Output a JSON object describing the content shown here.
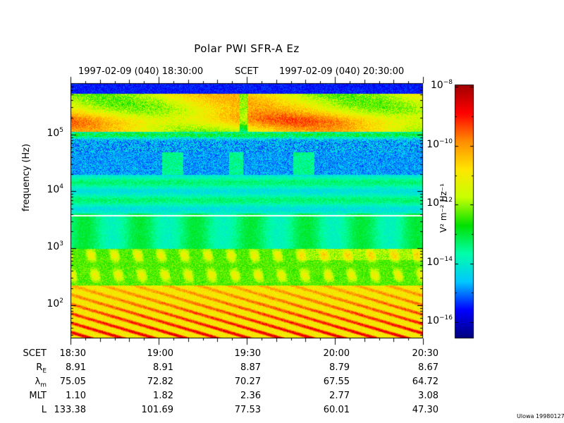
{
  "title": "Polar PWI SFR-A Ez",
  "header": {
    "start_time": "1997-02-09 (040)  18:30:00",
    "timescale": "SCET",
    "end_time": "1997-02-09 (040)  20:30:00"
  },
  "footer_label": "Ulowa 19980127",
  "colorbar": {
    "label": "V² m⁻² Hz⁻¹",
    "tick_base": "10",
    "ticks": [
      {
        "exp": "−8",
        "value": 1e-08
      },
      {
        "exp": "−10",
        "value": 1e-10
      },
      {
        "exp": "−12",
        "value": 1e-12
      },
      {
        "exp": "−14",
        "value": 1e-14
      },
      {
        "exp": "−16",
        "value": 1e-16
      }
    ],
    "scale": "log",
    "range": [
      3e-17,
      1.2e-08
    ],
    "colors": [
      "#00007f",
      "#0000ff",
      "#00c8ff",
      "#00ffaa",
      "#00e100",
      "#c8ff00",
      "#ffe600",
      "#ff8c00",
      "#ff0000",
      "#a00000"
    ]
  },
  "ephemeris": {
    "labels": [
      "SCET",
      "R",
      "λ",
      "MLT",
      "L"
    ],
    "label_subs": [
      "",
      "E",
      "m",
      "",
      ""
    ],
    "columns": [
      {
        "scet": "18:30",
        "re": "8.91",
        "lam": "75.05",
        "mlt": "1.10",
        "l": "133.38"
      },
      {
        "scet": "19:00",
        "re": "8.91",
        "lam": "72.82",
        "mlt": "1.82",
        "l": "101.69"
      },
      {
        "scet": "19:30",
        "re": "8.87",
        "lam": "70.27",
        "mlt": "2.36",
        "l": "77.53"
      },
      {
        "scet": "20:00",
        "re": "8.79",
        "lam": "67.55",
        "mlt": "2.77",
        "l": "60.01"
      },
      {
        "scet": "20:30",
        "re": "8.67",
        "lam": "64.72",
        "mlt": "3.08",
        "l": "47.30"
      }
    ]
  },
  "chart_data": {
    "type": "heatmap",
    "title": "Polar PWI SFR-A Ez",
    "xlabel": "SCET",
    "ylabel": "frequency (Hz)",
    "x_range": [
      "18:30",
      "20:30"
    ],
    "x_ticks": [
      "18:30",
      "19:00",
      "19:30",
      "20:00",
      "20:30"
    ],
    "y_scale": "log",
    "y_range_hz": [
      26,
      800000
    ],
    "y_tick_values": [
      100,
      1000,
      10000,
      100000
    ],
    "y_tick_exps": [
      "2",
      "3",
      "4",
      "5"
    ],
    "y_tick_base": "10",
    "value_label": "V² m⁻² Hz⁻¹",
    "value_scale": "log",
    "value_range": [
      3e-17,
      1.2e-08
    ],
    "grid": false
  }
}
